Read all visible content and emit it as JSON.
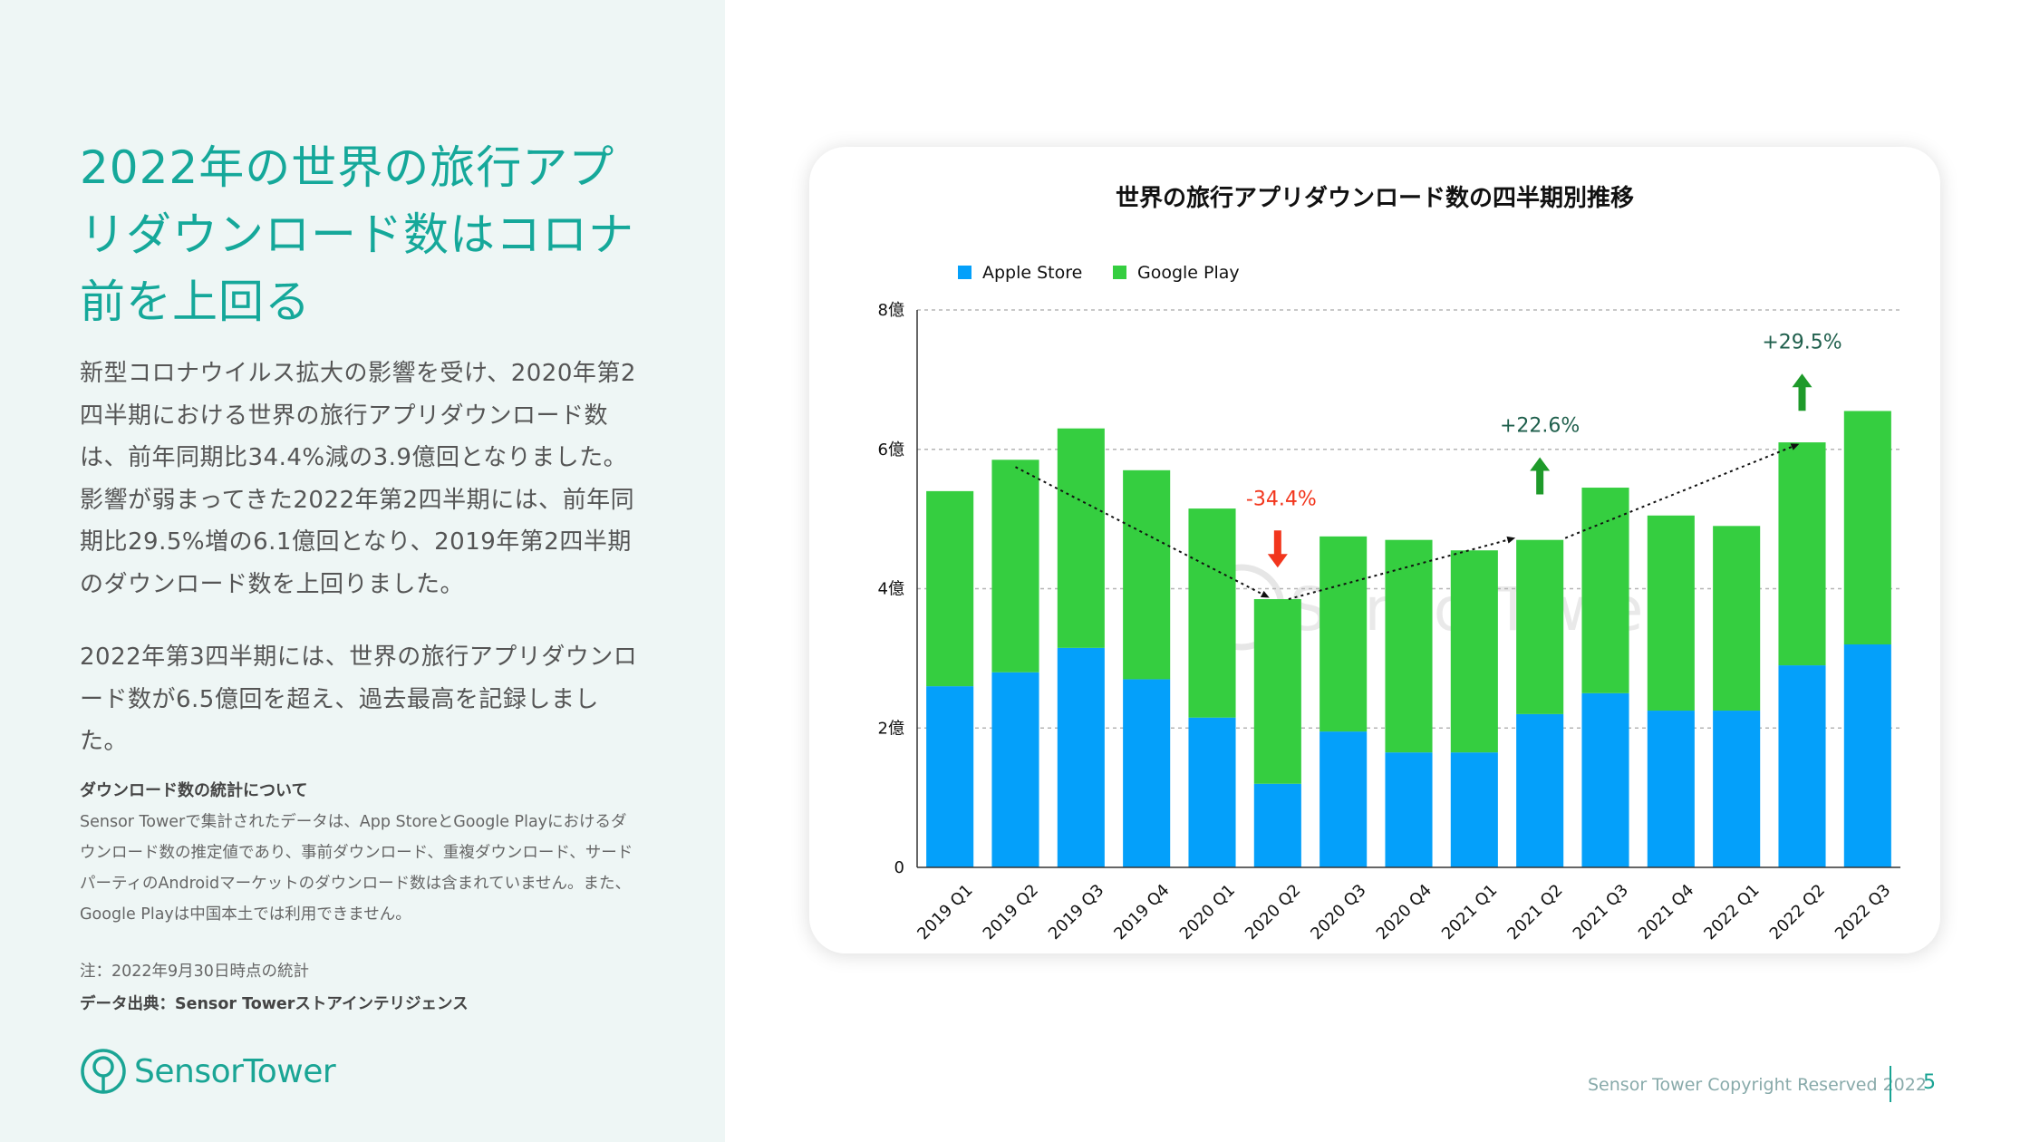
{
  "left": {
    "headline": "2022年の世界の旅行アプリダウンロード数はコロナ前を上回る",
    "para1": "新型コロナウイルス拡大の影響を受け、2020年第2四半期における世界の旅行アプリダウンロード数は、前年同期比34.4%減の3.9億回となりました。影響が弱まってきた2022年第2四半期には、前年同期比29.5%増の6.1億回となり、2019年第2四半期のダウンロード数を上回りました。",
    "para2": "2022年第3四半期には、世界の旅行アプリダウンロード数が6.5億回を超え、過去最高を記録しました。",
    "stats_title": "ダウンロード数の統計について",
    "stats_body": "Sensor Towerで集計されたデータは、App StoreとGoogle Playにおけるダウンロード数の推定値であり、事前ダウンロード、重複ダウンロード、サードパーティのAndroidマーケットのダウンロード数は含まれていません。また、Google Playは中国本土では利用できません。",
    "note": "注：2022年9月30日時点の統計",
    "source": "データ出典：Sensor Towerストアインテリジェンス",
    "logo_text": "SensorTower"
  },
  "footer": {
    "copyright": "Sensor Tower Copyright Reserved 2022",
    "page_number": "5"
  },
  "colors": {
    "accent": "#15a89a",
    "apple": "#04a0fa",
    "google": "#35ce40",
    "down": "#f2361d",
    "up": "#1e9a2a"
  },
  "chart_data": {
    "type": "bar",
    "stacked": true,
    "title": "世界の旅行アプリダウンロード数の四半期別推移",
    "categories": [
      "2019 Q1",
      "2019 Q2",
      "2019 Q3",
      "2019 Q4",
      "2020 Q1",
      "2020 Q2",
      "2020 Q3",
      "2020 Q4",
      "2021 Q1",
      "2021 Q2",
      "2021 Q3",
      "2021 Q4",
      "2022 Q1",
      "2022 Q2",
      "2022 Q3"
    ],
    "series": [
      {
        "name": "Apple Store",
        "color": "#04a0fa",
        "values": [
          2.6,
          2.8,
          3.15,
          2.7,
          2.15,
          1.2,
          1.95,
          1.65,
          1.65,
          2.2,
          2.5,
          2.25,
          2.25,
          2.9,
          3.2
        ]
      },
      {
        "name": "Google Play",
        "color": "#35ce40",
        "values": [
          2.8,
          3.05,
          3.15,
          3.0,
          3.0,
          2.65,
          2.8,
          3.05,
          2.9,
          2.5,
          2.95,
          2.8,
          2.65,
          3.2,
          3.35
        ]
      }
    ],
    "yticks": [
      {
        "value": 0,
        "label": "0"
      },
      {
        "value": 2,
        "label": "2億"
      },
      {
        "value": 4,
        "label": "4億"
      },
      {
        "value": 6,
        "label": "6億"
      },
      {
        "value": 8,
        "label": "8億"
      }
    ],
    "ylim": [
      0,
      8
    ],
    "xlabel": "",
    "ylabel": "",
    "legend": "top-left",
    "grid": true,
    "annotations": [
      {
        "text": "-34.4%",
        "from": 1,
        "to": 5,
        "direction": "down",
        "value_y": 5.2
      },
      {
        "text": "+22.6%",
        "from": 5,
        "to": 9,
        "direction": "up",
        "value_y": 6.25
      },
      {
        "text": "+29.5%",
        "from": 9,
        "to": 13,
        "direction": "up",
        "value_y": 7.45
      }
    ],
    "watermark": "SensorTower"
  }
}
